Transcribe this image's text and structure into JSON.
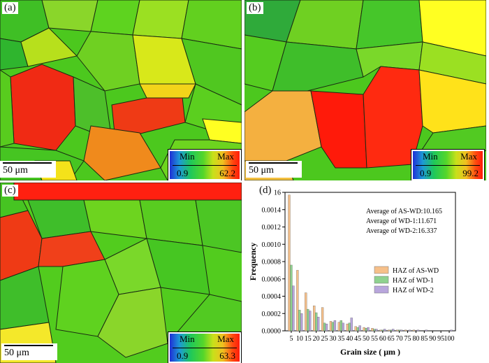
{
  "panels": {
    "a": {
      "label": "(a)",
      "scale": "50 μm",
      "legend_min_label": "Min",
      "legend_max_label": "Max",
      "legend_min": "0.9",
      "legend_max": "62.2"
    },
    "b": {
      "label": "(b)",
      "scale": "50 μm",
      "legend_min_label": "Min",
      "legend_max_label": "Max",
      "legend_min": "0.9",
      "legend_max": "99.2"
    },
    "c": {
      "label": "(c)",
      "scale": "50 μm",
      "legend_min_label": "Min",
      "legend_max_label": "Max",
      "legend_min": "0.9",
      "legend_max": "63.3"
    },
    "d": {
      "label": "(d)"
    }
  },
  "chart_data": {
    "type": "bar",
    "title": "",
    "xlabel": "Grain size ( μm )",
    "ylabel": "Frequency",
    "categories": [
      "5",
      "10",
      "15",
      "20",
      "25",
      "30",
      "35",
      "40",
      "45",
      "50",
      "55",
      "60",
      "65",
      "70",
      "75",
      "80",
      "85",
      "90",
      "95",
      "100"
    ],
    "ylim": [
      0,
      0.0016
    ],
    "yticks": [
      "0.0000",
      "0.0002",
      "0.0004",
      "0.0006",
      "0.0008",
      "0.0010",
      "0.0012",
      "0.0014",
      "0.0016"
    ],
    "series": [
      {
        "name": "HAZ of AS-WD",
        "color": "#f6c08a",
        "values": [
          0.00157,
          0.0007,
          0.00044,
          0.00029,
          0.00027,
          0.00011,
          0.0001,
          8e-05,
          5e-05,
          4e-05,
          3e-05,
          1e-05,
          1e-05,
          1e-05,
          1e-05,
          1e-05,
          0,
          0,
          0,
          0
        ]
      },
      {
        "name": "HAZ of WD-1",
        "color": "#8fd28f",
        "values": [
          0.00076,
          0.00024,
          0.00025,
          0.00021,
          9e-05,
          0.0001,
          0.00012,
          9e-05,
          4e-05,
          3e-05,
          2e-05,
          1e-05,
          1e-05,
          1e-05,
          0,
          0,
          0,
          0,
          0,
          0
        ]
      },
      {
        "name": "HAZ of WD-2",
        "color": "#b8a6dc",
        "values": [
          0.00052,
          0.0002,
          0.00023,
          0.00016,
          8e-05,
          0.00012,
          9e-05,
          0.00015,
          6e-05,
          4e-05,
          2e-05,
          2e-05,
          2e-05,
          1e-05,
          1e-05,
          1e-05,
          1e-05,
          0,
          0,
          1e-05
        ]
      }
    ],
    "annotations": [
      "Average of AS-WD:10.165",
      "Average of WD-1:11.671",
      "Average of WD-2:16.337"
    ]
  }
}
